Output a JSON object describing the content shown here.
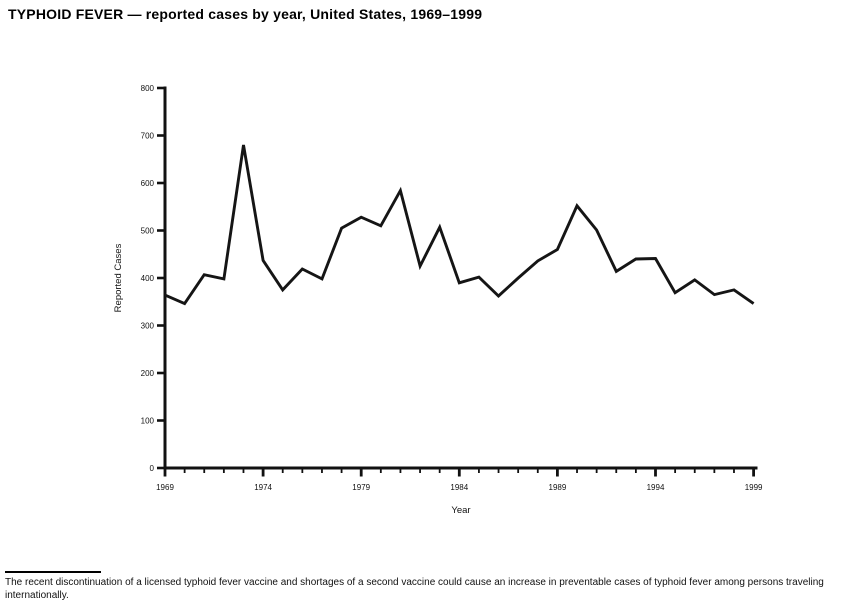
{
  "title": "TYPHOID FEVER — reported cases by year, United States, 1969–1999",
  "footnote": "The recent discontinuation of a licensed typhoid fever vaccine and shortages of a second vaccine could cause an increase in preventable cases of typhoid fever among persons traveling internationally.",
  "chart_data": {
    "type": "line",
    "title": "TYPHOID FEVER — reported cases by year, United States, 1969–1999",
    "xlabel": "Year",
    "ylabel": "Reported Cases",
    "x": [
      1969,
      1970,
      1971,
      1972,
      1973,
      1974,
      1975,
      1976,
      1977,
      1978,
      1979,
      1980,
      1981,
      1982,
      1983,
      1984,
      1985,
      1986,
      1987,
      1988,
      1989,
      1990,
      1991,
      1992,
      1993,
      1994,
      1995,
      1996,
      1997,
      1998,
      1999
    ],
    "values": [
      364,
      346,
      407,
      398,
      680,
      437,
      375,
      419,
      398,
      505,
      528,
      510,
      584,
      425,
      507,
      390,
      402,
      362,
      400,
      436,
      460,
      552,
      501,
      414,
      440,
      441,
      369,
      396,
      365,
      375,
      346
    ],
    "ylim": [
      0,
      800
    ],
    "y_tick_interval": 100,
    "y_tick_labels": [
      "0",
      "100",
      "200",
      "300",
      "400",
      "500",
      "600",
      "700",
      "800"
    ],
    "x_major_ticks": [
      1969,
      1974,
      1979,
      1984,
      1989,
      1994,
      1999
    ],
    "x_major_tick_labels": [
      "1969",
      "1974",
      "1979",
      "1984",
      "1989",
      "1994",
      "1999"
    ],
    "grid": false,
    "legend": null,
    "line_color": "#151515",
    "axis_color": "#111111"
  }
}
